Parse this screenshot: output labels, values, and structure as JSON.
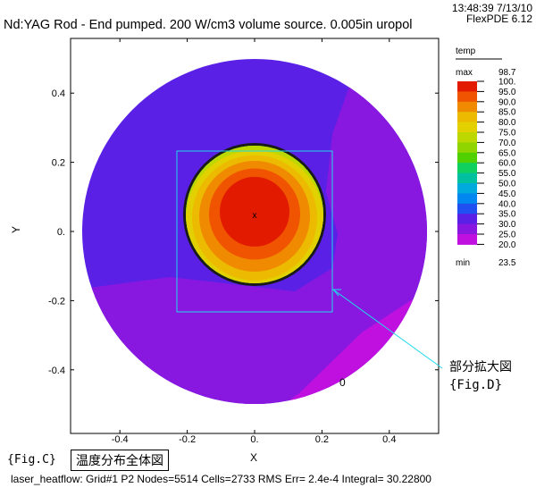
{
  "header": {
    "title": "Nd:YAG Rod - End pumped.  200 W/cm3 volume source. 0.005in uropol",
    "timestamp": "13:48:39 7/13/10",
    "version": "FlexPDE 6.12"
  },
  "chart_data": {
    "type": "heatmap",
    "title": "Nd:YAG Rod - End pumped.  200 W/cm3 volume source. 0.005in uropol",
    "xlabel": "X",
    "ylabel": "Y",
    "xlim": [
      -0.55,
      0.55
    ],
    "ylim": [
      -0.5,
      0.55
    ],
    "x_ticks": [
      -0.4,
      -0.2,
      0.0,
      0.2,
      0.4
    ],
    "x_tick_labels": [
      "-0.4",
      "-0.2",
      "0.",
      "0.2",
      "0.4"
    ],
    "y_ticks": [
      0.4,
      0.2,
      0.0,
      -0.2,
      -0.4
    ],
    "y_tick_labels": [
      "0.4",
      "0.2",
      "0.",
      "-0.2",
      "-0.4"
    ],
    "domain_radius": 0.5,
    "rod_center": [
      0.0,
      0.05
    ],
    "rod_radius": 0.2,
    "zoom_box": {
      "x": [
        -0.23,
        0.23
      ],
      "y": [
        -0.23,
        0.23
      ]
    },
    "legend": {
      "title": "temp",
      "max_label": "max",
      "max_value": "98.7",
      "min_label": "min",
      "min_value": "23.5",
      "levels": [
        "100.",
        "95.0",
        "90.0",
        "85.0",
        "80.0",
        "75.0",
        "70.0",
        "65.0",
        "60.0",
        "55.0",
        "50.0",
        "45.0",
        "40.0",
        "35.0",
        "30.0",
        "25.0",
        "20.0"
      ],
      "colors": [
        "#e21a00",
        "#f05400",
        "#f08a00",
        "#ecba00",
        "#e2d000",
        "#bcd800",
        "#90d400",
        "#50d000",
        "#10d060",
        "#00c0a0",
        "#00aadc",
        "#0088f0",
        "#2050f0",
        "#5a20e6",
        "#8818e0",
        "#c010e0"
      ]
    },
    "stray_label": "0"
  },
  "annotations": {
    "fig_c": "{Fig.C}",
    "whole_view": "温度分布全体図",
    "callout_title": "部分拡大図",
    "callout_fig": "{Fig.D}"
  },
  "footer": "laser_heatflow:  Grid#1  P2  Nodes=5514  Cells=2733  RMS Err= 2.4e-4  Integral= 30.22800"
}
